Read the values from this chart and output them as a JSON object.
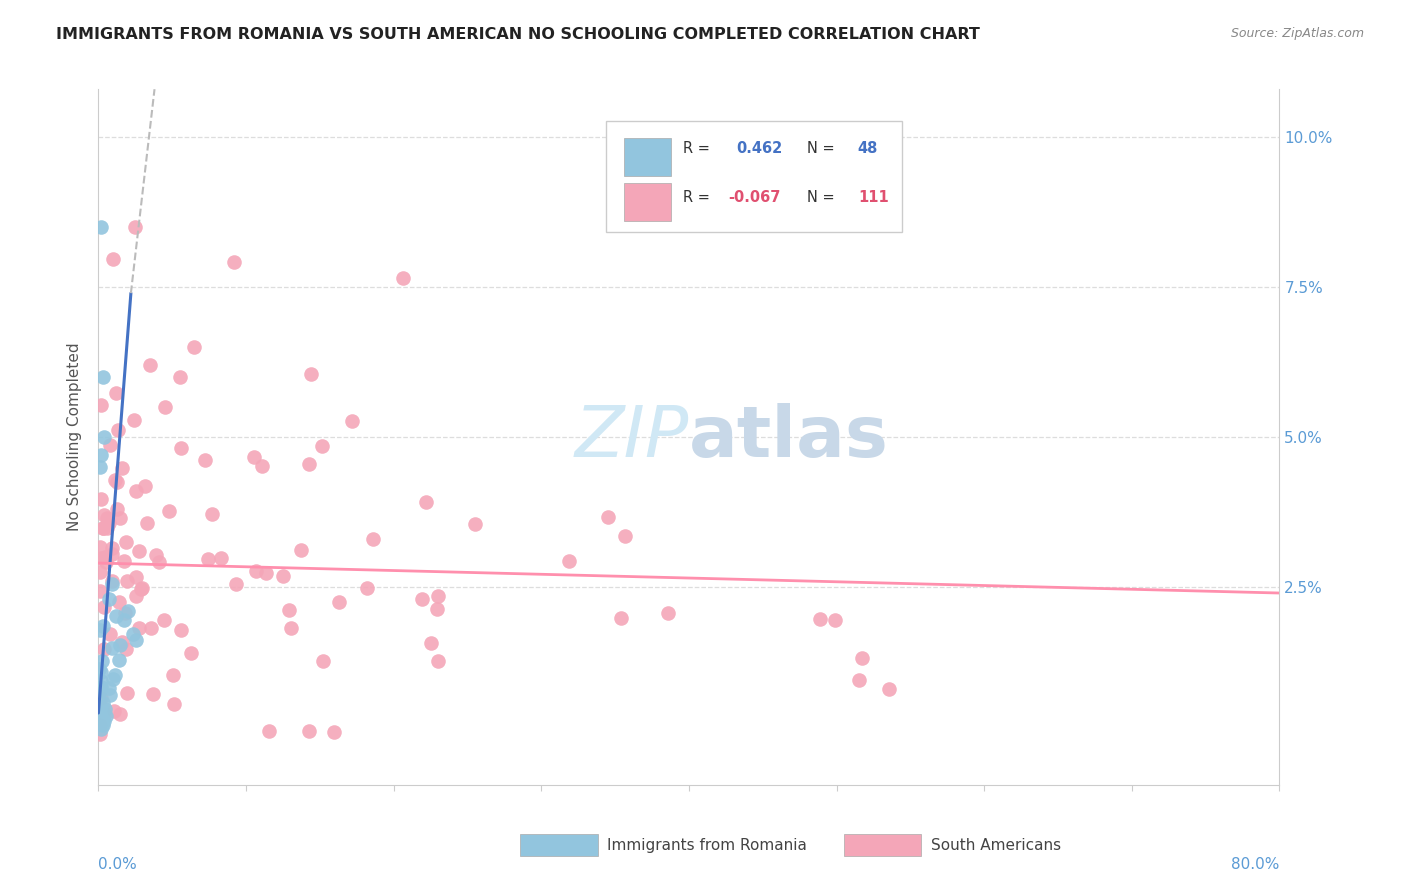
{
  "title": "IMMIGRANTS FROM ROMANIA VS SOUTH AMERICAN NO SCHOOLING COMPLETED CORRELATION CHART",
  "source": "Source: ZipAtlas.com",
  "ylabel": "No Schooling Completed",
  "ytick_labels": [
    "2.5%",
    "5.0%",
    "7.5%",
    "10.0%"
  ],
  "ytick_values": [
    0.025,
    0.05,
    0.075,
    0.1
  ],
  "xmin": 0.0,
  "xmax": 0.8,
  "ymin": -0.008,
  "ymax": 0.108,
  "romania_R": 0.462,
  "romania_N": 48,
  "south_american_R": -0.067,
  "south_american_N": 111,
  "romania_color": "#92C5DE",
  "south_american_color": "#F4A6B8",
  "romania_edge_color": "#7AAFC8",
  "south_american_edge_color": "#E890A8",
  "romania_line_color": "#4472C4",
  "south_american_line_color": "#FF8FAD",
  "trend_line_dashed_color": "#BBBBBB",
  "background_color": "#FFFFFF",
  "watermark_color": "#D0E8F5",
  "grid_color": "#DDDDDD",
  "axis_color": "#CCCCCC",
  "right_tick_color": "#5B9BD5",
  "title_color": "#222222",
  "source_color": "#888888",
  "ylabel_color": "#555555"
}
